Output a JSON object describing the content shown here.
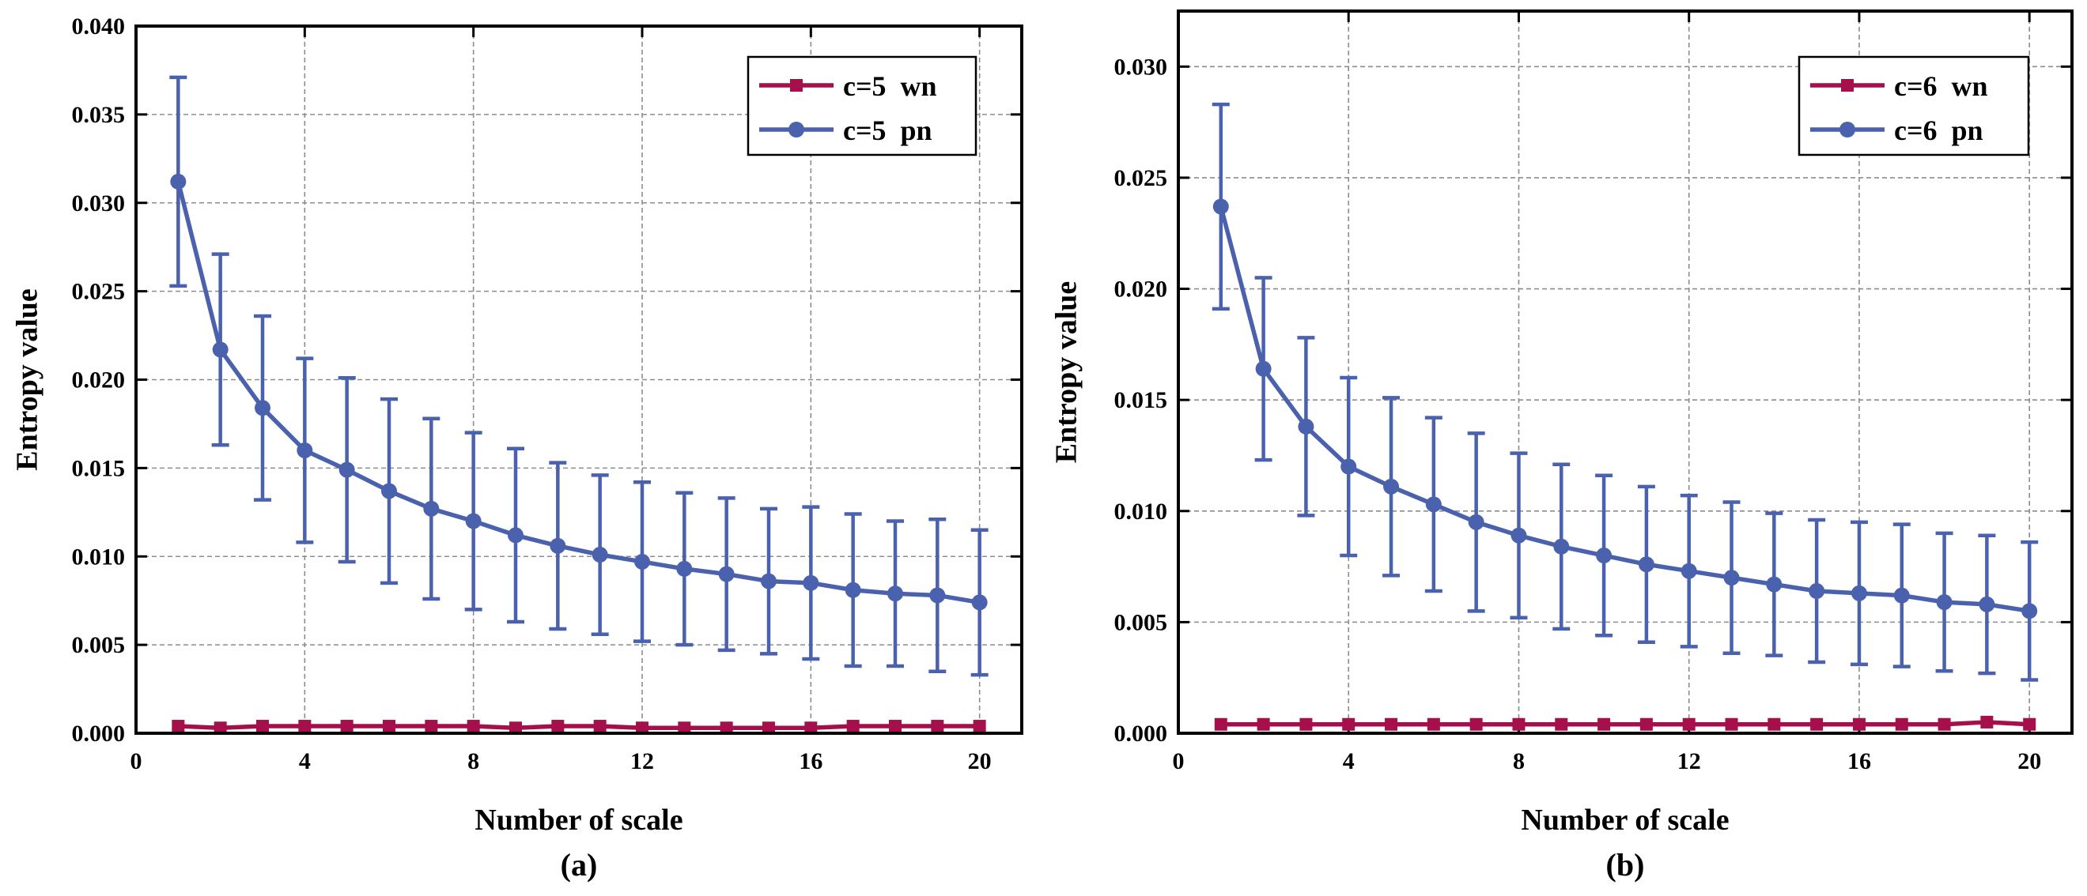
{
  "chart_data": [
    {
      "type": "line",
      "panel_label": "(a)",
      "title": "",
      "xlabel": "Number of scale",
      "ylabel": "Entropy value",
      "xlim": [
        0,
        21
      ],
      "ylim": [
        0,
        0.04
      ],
      "xticks": [
        0,
        4,
        8,
        12,
        16,
        20
      ],
      "xtick_labels": [
        "0",
        "4",
        "8",
        "12",
        "16",
        "20"
      ],
      "yticks": [
        0,
        0.005,
        0.01,
        0.015,
        0.02,
        0.025,
        0.03,
        0.035,
        0.04
      ],
      "ytick_labels": [
        "0.000",
        "0.005",
        "0.010",
        "0.015",
        "0.020",
        "0.025",
        "0.030",
        "0.035",
        "0.040"
      ],
      "grid": true,
      "legend_position": "top-right",
      "x": [
        1,
        2,
        3,
        4,
        5,
        6,
        7,
        8,
        9,
        10,
        11,
        12,
        13,
        14,
        15,
        16,
        17,
        18,
        19,
        20
      ],
      "series": [
        {
          "name": "c=5  wn",
          "color": "#A50F4B",
          "marker": "square",
          "values": [
            0.0004,
            0.0003,
            0.0004,
            0.0004,
            0.0004,
            0.0004,
            0.0004,
            0.0004,
            0.0003,
            0.0004,
            0.0004,
            0.0003,
            0.0003,
            0.0003,
            0.0003,
            0.0003,
            0.0004,
            0.0004,
            0.0004,
            0.0004
          ],
          "error": [
            0,
            0,
            0,
            0,
            0,
            0,
            0,
            0,
            0,
            0,
            0,
            0,
            0,
            0,
            0,
            0,
            0,
            0,
            0,
            0
          ]
        },
        {
          "name": "c=5  pn",
          "color": "#4A62AD",
          "marker": "circle",
          "values": [
            0.0312,
            0.0217,
            0.0184,
            0.016,
            0.0149,
            0.0137,
            0.0127,
            0.012,
            0.0112,
            0.0106,
            0.0101,
            0.0097,
            0.0093,
            0.009,
            0.0086,
            0.0085,
            0.0081,
            0.0079,
            0.0078,
            0.0074
          ],
          "error": [
            0.0059,
            0.0054,
            0.0052,
            0.0052,
            0.0052,
            0.0052,
            0.0051,
            0.005,
            0.0049,
            0.0047,
            0.0045,
            0.0045,
            0.0043,
            0.0043,
            0.0041,
            0.0043,
            0.0043,
            0.0041,
            0.0043,
            0.0041
          ]
        }
      ]
    },
    {
      "type": "line",
      "panel_label": "(b)",
      "title": "",
      "xlabel": "Number of scale",
      "ylabel": "Entropy value",
      "xlim": [
        0,
        21
      ],
      "ylim": [
        0,
        0.0325
      ],
      "xticks": [
        0,
        4,
        8,
        12,
        16,
        20
      ],
      "xtick_labels": [
        "0",
        "4",
        "8",
        "12",
        "16",
        "20"
      ],
      "yticks": [
        0,
        0.005,
        0.01,
        0.015,
        0.02,
        0.025,
        0.03
      ],
      "ytick_labels": [
        "0.000",
        "0.005",
        "0.010",
        "0.015",
        "0.020",
        "0.025",
        "0.030"
      ],
      "grid": true,
      "legend_position": "top-right",
      "x": [
        1,
        2,
        3,
        4,
        5,
        6,
        7,
        8,
        9,
        10,
        11,
        12,
        13,
        14,
        15,
        16,
        17,
        18,
        19,
        20
      ],
      "series": [
        {
          "name": "c=6  wn",
          "color": "#A50F4B",
          "marker": "square",
          "values": [
            0.0004,
            0.0004,
            0.0004,
            0.0004,
            0.0004,
            0.0004,
            0.0004,
            0.0004,
            0.0004,
            0.0004,
            0.0004,
            0.0004,
            0.0004,
            0.0004,
            0.0004,
            0.0004,
            0.0004,
            0.0004,
            0.0005,
            0.0004
          ],
          "error": [
            0,
            0,
            0,
            0,
            0,
            0,
            0,
            0,
            0,
            0,
            0,
            0,
            0,
            0,
            0,
            0,
            0,
            0,
            0,
            0
          ]
        },
        {
          "name": "c=6  pn",
          "color": "#4A62AD",
          "marker": "circle",
          "values": [
            0.0237,
            0.0164,
            0.0138,
            0.012,
            0.0111,
            0.0103,
            0.0095,
            0.0089,
            0.0084,
            0.008,
            0.0076,
            0.0073,
            0.007,
            0.0067,
            0.0064,
            0.0063,
            0.0062,
            0.0059,
            0.0058,
            0.0055
          ],
          "error": [
            0.0046,
            0.0041,
            0.004,
            0.004,
            0.004,
            0.0039,
            0.004,
            0.0037,
            0.0037,
            0.0036,
            0.0035,
            0.0034,
            0.0034,
            0.0032,
            0.0032,
            0.0032,
            0.0032,
            0.0031,
            0.0031,
            0.0031
          ]
        }
      ]
    }
  ]
}
